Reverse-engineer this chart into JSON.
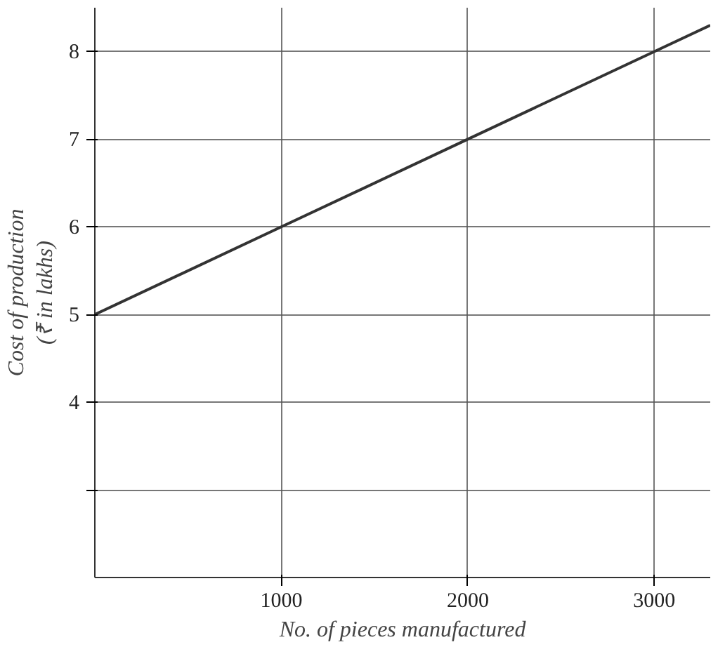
{
  "chart_data": {
    "type": "line",
    "xlabel": "No. of pieces manufactured",
    "ylabel": "Cost of production\n(₹ in lakhs)",
    "x": [
      0,
      1000,
      2000,
      3000,
      3300
    ],
    "series": [
      {
        "color": "#333333",
        "values": [
          5,
          6,
          7,
          8,
          8.3
        ]
      }
    ],
    "xlim": [
      0,
      3300
    ],
    "ylim": [
      2,
      8.5
    ],
    "xticks": [
      1000,
      2000,
      3000
    ],
    "yticks": [
      {
        "value": 3,
        "label": null
      },
      4,
      5,
      6,
      7,
      8
    ],
    "grid": true,
    "marker": "none",
    "line_style": "solid"
  }
}
